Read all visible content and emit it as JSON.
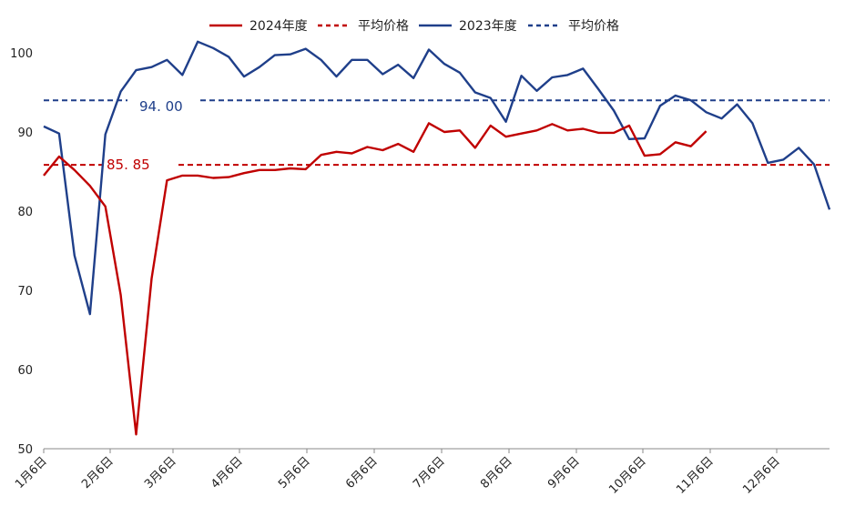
{
  "chart_data": {
    "type": "line",
    "title": "",
    "xlabel": "",
    "ylabel": "",
    "ylim": [
      50,
      100
    ],
    "yticks": [
      50,
      60,
      70,
      80,
      90,
      100
    ],
    "x_tick_labels": [
      "1月6日",
      "2月6日",
      "3月6日",
      "4月6日",
      "5月6日",
      "6月6日",
      "7月6日",
      "8月6日",
      "9月6日",
      "10月6日",
      "11月6日",
      "12月6日"
    ],
    "x_unit": "week index (0 = 1月6日)",
    "legend": {
      "position": "top",
      "items": [
        "2024年度",
        "平均价格",
        "2023年度",
        "平均价格"
      ]
    },
    "series": [
      {
        "name": "2024年度",
        "color": "#c00000",
        "style": "solid",
        "x": [
          0,
          1,
          2,
          3,
          4,
          5,
          6,
          7,
          8,
          9,
          10,
          11,
          12,
          13,
          14,
          15,
          16,
          17,
          18,
          19,
          20,
          21,
          22,
          23,
          24,
          25,
          26,
          27,
          28,
          29,
          30,
          31,
          32,
          33,
          34,
          35,
          36,
          37,
          38,
          39,
          40,
          41,
          42,
          43
        ],
        "values": [
          84.5,
          86.9,
          85.2,
          83.2,
          80.6,
          69.4,
          51.8,
          71.5,
          83.9,
          84.5,
          84.5,
          84.2,
          84.3,
          84.8,
          85.2,
          85.2,
          85.4,
          85.3,
          87.1,
          87.5,
          87.3,
          88.1,
          87.7,
          88.5,
          87.5,
          91.1,
          90.0,
          90.2,
          88.0,
          90.8,
          89.4,
          89.8,
          90.2,
          91.0,
          90.2,
          90.4,
          89.9,
          89.9,
          90.8,
          87.0,
          87.2,
          88.7,
          88.2,
          90.1
        ]
      },
      {
        "name": "平均价格",
        "color": "#c00000",
        "style": "dashed",
        "values": [
          85.85
        ],
        "label": "85. 85"
      },
      {
        "name": "2023年度",
        "color": "#1f3f8a",
        "style": "solid",
        "x": [
          0,
          1,
          2,
          3,
          4,
          5,
          6,
          7,
          8,
          9,
          10,
          11,
          12,
          13,
          14,
          15,
          16,
          17,
          18,
          19,
          20,
          21,
          22,
          23,
          24,
          25,
          26,
          27,
          28,
          29,
          30,
          31,
          32,
          33,
          34,
          35,
          36,
          37,
          38,
          39,
          40,
          41,
          42,
          43,
          44,
          45,
          46,
          47,
          48,
          49,
          50,
          51
        ],
        "values": [
          90.7,
          89.8,
          74.4,
          67.0,
          89.7,
          95.1,
          97.8,
          98.2,
          99.1,
          97.2,
          101.4,
          100.6,
          99.5,
          97.0,
          98.2,
          99.7,
          99.8,
          100.5,
          99.1,
          97.0,
          99.1,
          99.1,
          97.3,
          98.5,
          96.8,
          100.4,
          98.6,
          97.5,
          95.0,
          94.3,
          91.3,
          97.1,
          95.2,
          96.9,
          97.2,
          98.0,
          95.4,
          92.7,
          89.1,
          89.2,
          93.3,
          94.6,
          94.0,
          92.5,
          91.7,
          93.5,
          91.1,
          86.1,
          86.5,
          88.0,
          85.9,
          80.2
        ]
      },
      {
        "name": "平均价格",
        "color": "#1f3f8a",
        "style": "dashed",
        "values": [
          94.0
        ],
        "label": "94. 00"
      }
    ]
  }
}
